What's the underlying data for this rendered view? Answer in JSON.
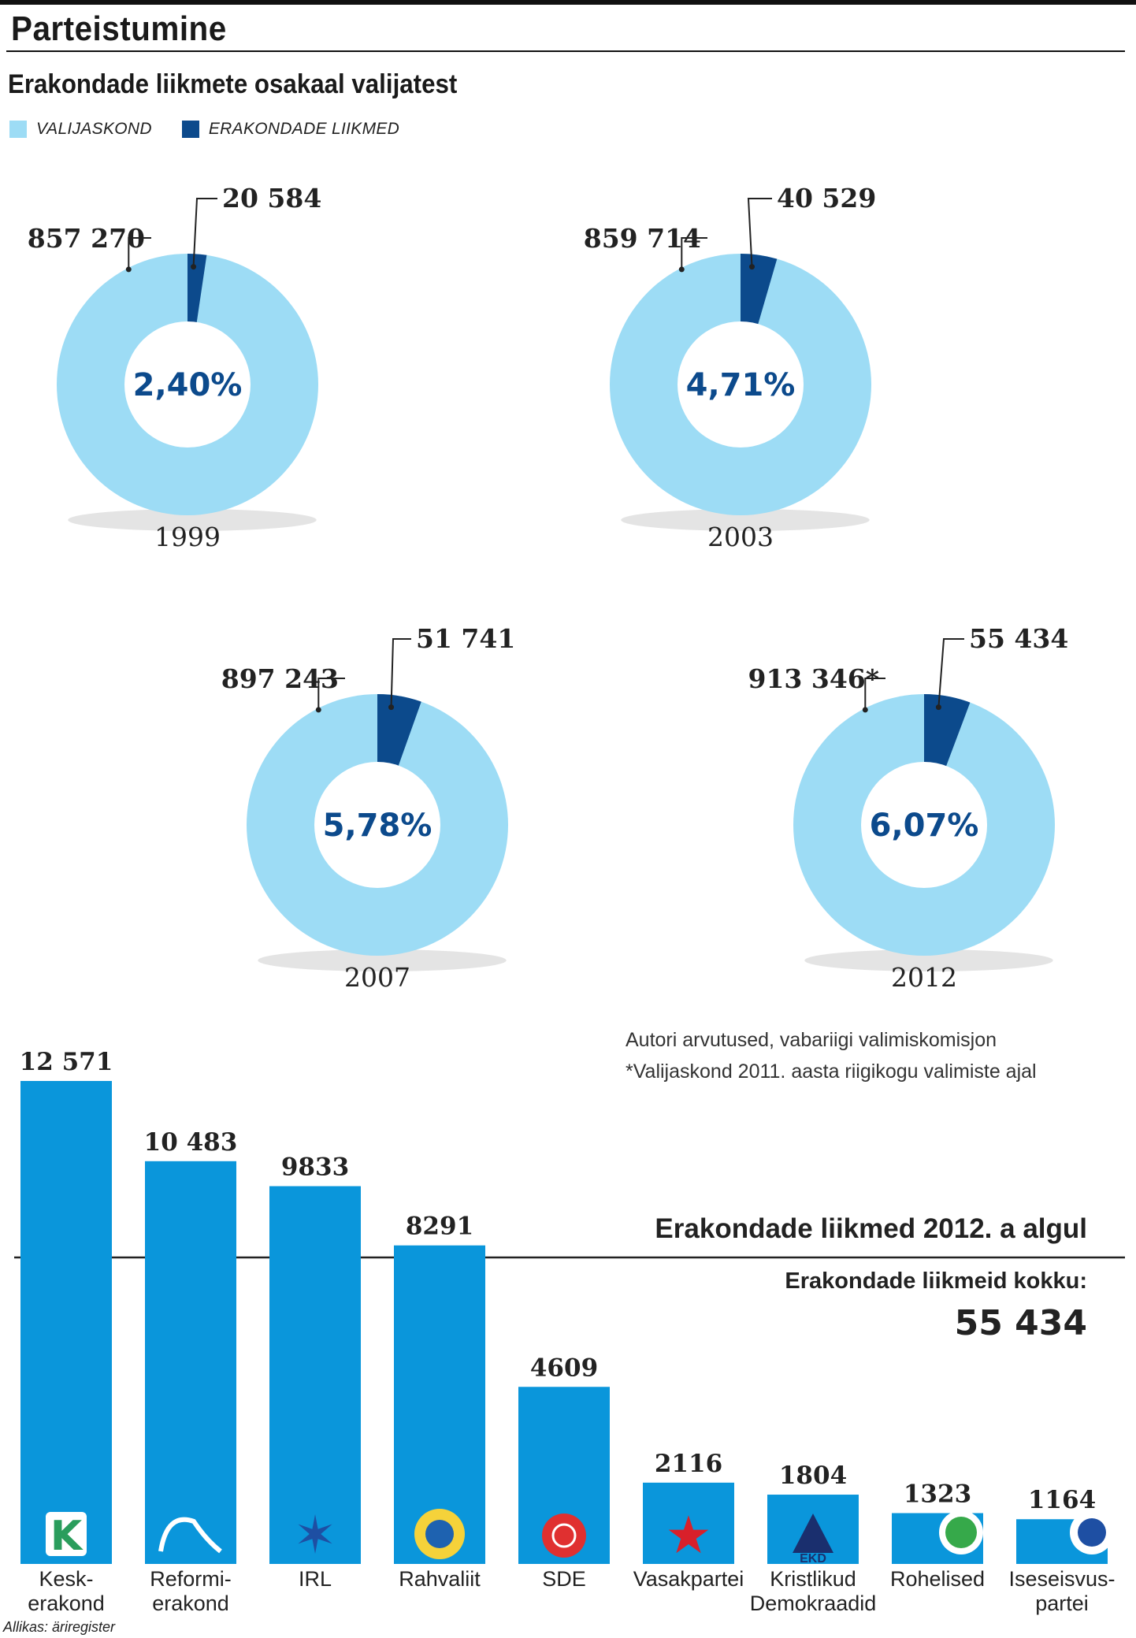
{
  "header": {
    "title": "Parteistumine",
    "subtitle": "Erakondade liikmete osakaal valijatest"
  },
  "legend": [
    {
      "label": "VALIJASKOND",
      "color": "#9ddcf5"
    },
    {
      "label": "ERAKONDADE LIIKMED",
      "color": "#0c4a8c"
    }
  ],
  "colors": {
    "electorate": "#9ddcf5",
    "members": "#0c4a8c",
    "bar": "#0a96db",
    "percent_text": "#0c4a8c"
  },
  "notes": {
    "line1": "Autori arvutused, vabariigi valimiskomisjon",
    "line2": "*Valijaskond 2011. aasta riigikogu valimiste ajal"
  },
  "bar_section": {
    "heading": "Erakondade liikmed 2012. a algul",
    "total_label": "Erakondade liikmeid kokku:",
    "total_value": "55 434"
  },
  "source": "Allikas: äriregister",
  "chart_data": [
    {
      "type": "pie",
      "year": "1999",
      "slices": [
        {
          "name": "ERAKONDADE LIIKMED",
          "value": 20584,
          "label": "20 584"
        },
        {
          "name": "VALIJASKOND",
          "value": 857270,
          "label": "857 270"
        }
      ],
      "center_label": "2,40%"
    },
    {
      "type": "pie",
      "year": "2003",
      "slices": [
        {
          "name": "ERAKONDADE LIIKMED",
          "value": 40529,
          "label": "40 529"
        },
        {
          "name": "VALIJASKOND",
          "value": 859714,
          "label": "859 714"
        }
      ],
      "center_label": "4,71%"
    },
    {
      "type": "pie",
      "year": "2007",
      "slices": [
        {
          "name": "ERAKONDADE LIIKMED",
          "value": 51741,
          "label": "51 741"
        },
        {
          "name": "VALIJASKOND",
          "value": 897243,
          "label": "897 243"
        }
      ],
      "center_label": "5,78%"
    },
    {
      "type": "pie",
      "year": "2012",
      "slices": [
        {
          "name": "ERAKONDADE LIIKMED",
          "value": 55434,
          "label": "55 434"
        },
        {
          "name": "VALIJASKOND",
          "value": 913346,
          "label": "913 346*"
        }
      ],
      "center_label": "6,07%"
    },
    {
      "type": "bar",
      "title": "Erakondade liikmed 2012. a algul",
      "categories": [
        "Kesk-\nerakond",
        "Reformi-\nerakond",
        "IRL",
        "Rahvaliit",
        "SDE",
        "Vasakpartei",
        "Kristlikud\nDemokraadid",
        "Rohelised",
        "Iseseisvus-\npartei"
      ],
      "values": [
        12571,
        10483,
        9833,
        8291,
        4609,
        2116,
        1804,
        1323,
        1164
      ],
      "value_labels": [
        "12 571",
        "10 483",
        "9833",
        "8291",
        "4609",
        "2116",
        "1804",
        "1323",
        "1164"
      ],
      "logos": [
        "kesk-logo-icon",
        "reform-squirrel-icon",
        "irl-star-icon",
        "rahvaliit-sun-icon",
        "sde-rose-icon",
        "vasakpartei-star-icon",
        "ekd-mountain-icon",
        "rohelised-circle-icon",
        "iseseisvus-emblem-icon"
      ]
    }
  ]
}
